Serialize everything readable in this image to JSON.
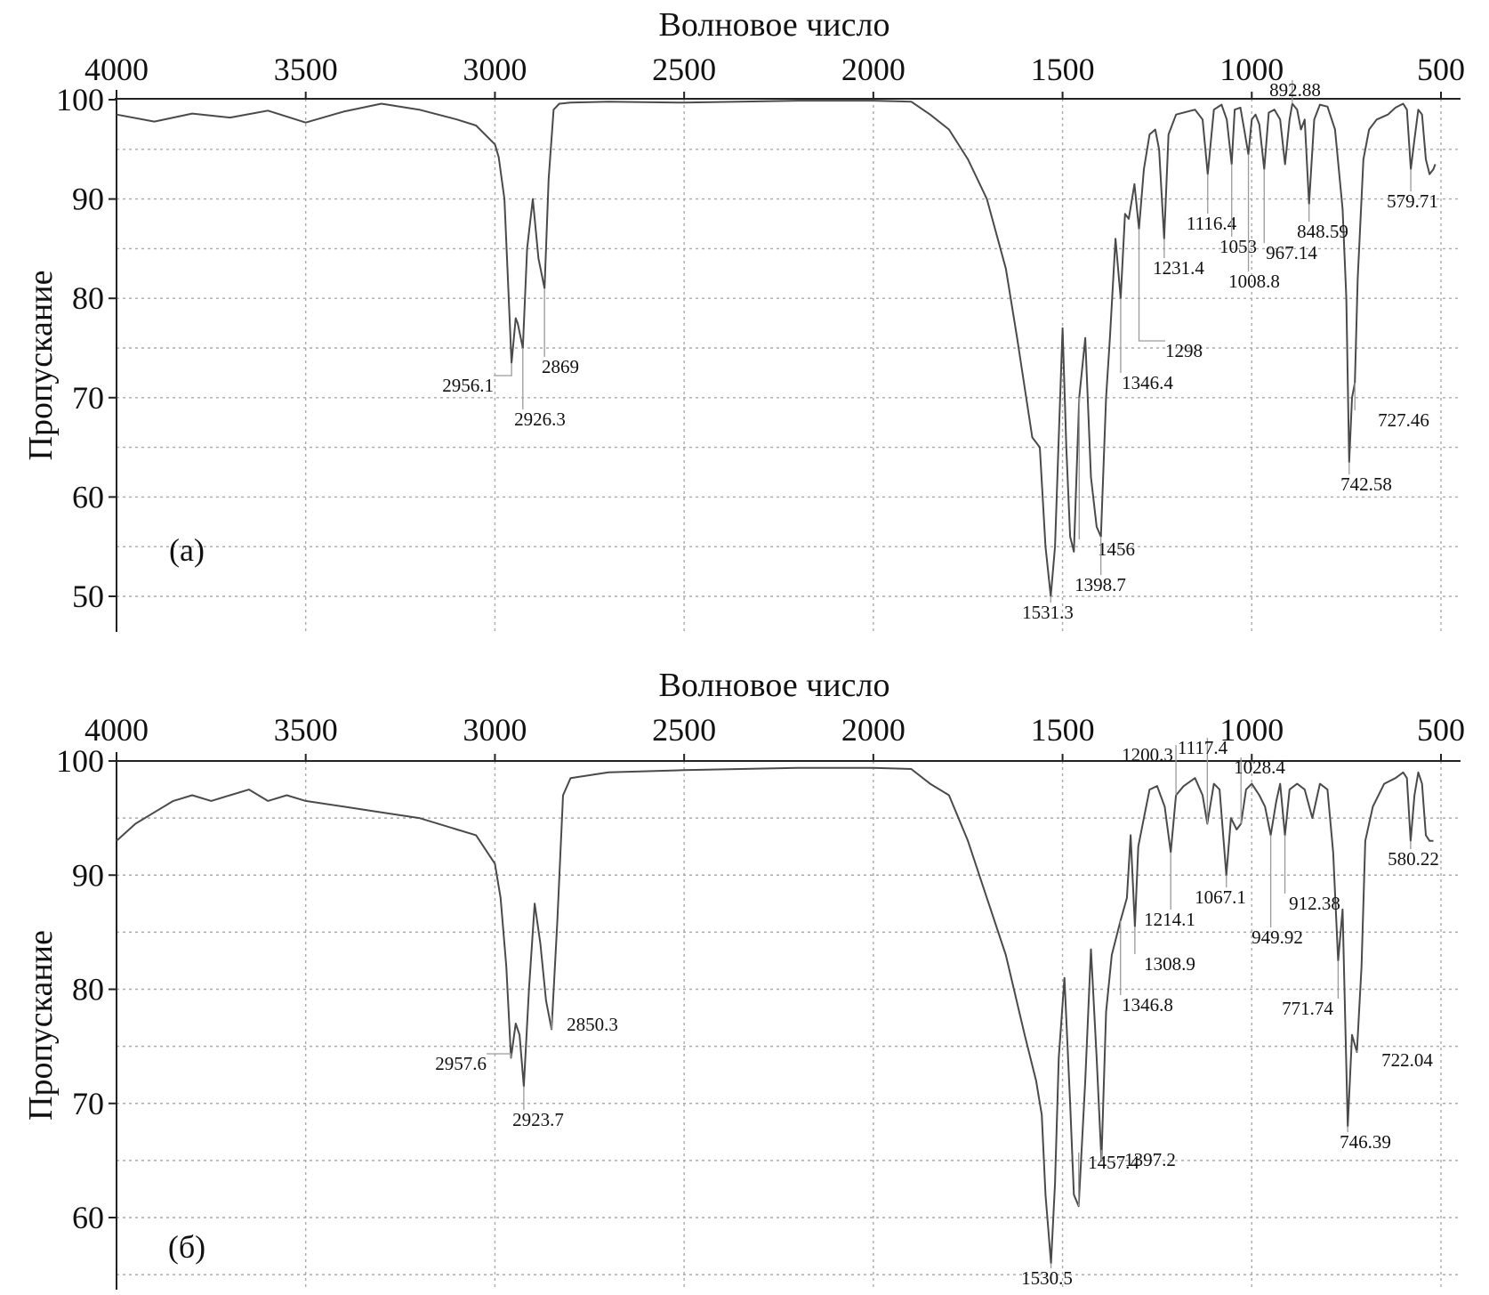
{
  "chart_data": [
    {
      "type": "line",
      "panel": "(a)",
      "xlabel": "Волновое число",
      "ylabel": "Пропускание",
      "xlim": [
        4000,
        500
      ],
      "ylim": [
        47,
        100
      ],
      "x_reversed": true,
      "xticks": [
        4000,
        3500,
        3000,
        2500,
        2000,
        1500,
        1000,
        500
      ],
      "yticks": [
        100,
        90,
        80,
        70,
        60,
        50
      ],
      "grid": true,
      "series": [
        {
          "x": [
            4000,
            3900,
            3800,
            3700,
            3600,
            3500,
            3400,
            3300,
            3200,
            3100,
            3050,
            3000,
            2990,
            2975,
            2956.1,
            2945,
            2940,
            2926.3,
            2915,
            2900,
            2885,
            2869,
            2858,
            2845,
            2830,
            2800,
            2700,
            2500,
            2200,
            2000,
            1900,
            1850,
            1800,
            1750,
            1700,
            1650,
            1620,
            1600,
            1580,
            1560,
            1545,
            1531.3,
            1520,
            1510,
            1500,
            1490,
            1480,
            1470,
            1456,
            1440,
            1425,
            1410,
            1398.7,
            1385,
            1375,
            1360,
            1346.4,
            1335,
            1325,
            1310,
            1298,
            1285,
            1270,
            1255,
            1245,
            1231.4,
            1220,
            1200,
            1150,
            1130,
            1116.4,
            1100,
            1080,
            1066,
            1053,
            1045,
            1030,
            1020,
            1008.8,
            1000,
            990,
            980,
            967.14,
            955,
            940,
            925,
            912,
            900,
            892.88,
            880,
            870,
            860,
            848.59,
            835,
            820,
            800,
            780,
            760,
            750,
            742.58,
            735,
            727.46,
            720,
            705,
            690,
            670,
            640,
            620,
            600,
            590,
            579.71,
            570,
            560,
            550,
            540,
            530,
            520,
            515
          ],
          "y": [
            98.5,
            97.8,
            98.6,
            98.2,
            98.9,
            97.7,
            98.8,
            99.6,
            99.0,
            98.0,
            97.4,
            95.5,
            94.2,
            90.0,
            73.5,
            78.0,
            77.5,
            75.0,
            85.0,
            90.0,
            84.0,
            81.0,
            92.0,
            99.0,
            99.6,
            99.7,
            99.8,
            99.7,
            99.9,
            99.9,
            99.8,
            98.5,
            97.0,
            94.0,
            90.0,
            83.0,
            76.0,
            71.0,
            66.0,
            65.0,
            55.0,
            50.0,
            55.0,
            66.0,
            77.0,
            65.0,
            56.0,
            54.5,
            70.0,
            76.0,
            62.0,
            57.0,
            56.0,
            70.0,
            76.0,
            86.0,
            80.0,
            88.5,
            88.0,
            91.5,
            87.0,
            93.0,
            96.5,
            97.0,
            95.0,
            86.0,
            96.5,
            98.5,
            99.0,
            98.0,
            92.5,
            99.0,
            99.5,
            98.0,
            93.5,
            99.0,
            99.2,
            97.0,
            94.5,
            98.0,
            98.5,
            97.5,
            93.0,
            98.7,
            99.0,
            98.0,
            93.5,
            98.0,
            99.6,
            99.0,
            97.0,
            98.0,
            89.5,
            98.0,
            99.5,
            99.3,
            97.0,
            89.0,
            80.0,
            63.5,
            70.0,
            71.5,
            82.0,
            94.0,
            97.0,
            98.0,
            98.5,
            99.2,
            99.6,
            99.0,
            93.0,
            96.0,
            99.0,
            98.5,
            94.0,
            92.5,
            93.0,
            93.5
          ]
        }
      ],
      "annotations": [
        {
          "x": 2956.1,
          "label": "2956.1"
        },
        {
          "x": 2926.3,
          "label": "2926.3"
        },
        {
          "x": 2869,
          "label": "2869"
        },
        {
          "x": 1531.3,
          "label": "1531.3"
        },
        {
          "x": 1456,
          "label": "1456"
        },
        {
          "x": 1398.7,
          "label": "1398.7"
        },
        {
          "x": 1346.4,
          "label": "1346.4"
        },
        {
          "x": 1298,
          "label": "1298"
        },
        {
          "x": 1231.4,
          "label": "1231.4"
        },
        {
          "x": 1116.4,
          "label": "1116.4"
        },
        {
          "x": 1053,
          "label": "1053"
        },
        {
          "x": 1008.8,
          "label": "1008.8"
        },
        {
          "x": 967.14,
          "label": "967.14"
        },
        {
          "x": 892.88,
          "label": "892.88"
        },
        {
          "x": 848.59,
          "label": "848.59"
        },
        {
          "x": 742.58,
          "label": "742.58"
        },
        {
          "x": 727.46,
          "label": "727.46"
        },
        {
          "x": 579.71,
          "label": "579.71"
        }
      ]
    },
    {
      "type": "line",
      "panel": "(б)",
      "xlabel": "Волновое число",
      "ylabel": "Пропускание",
      "xlim": [
        4000,
        500
      ],
      "ylim": [
        55,
        100
      ],
      "x_reversed": true,
      "xticks": [
        4000,
        3500,
        3000,
        2500,
        2000,
        1500,
        1000,
        500
      ],
      "yticks": [
        100,
        90,
        80,
        70,
        60
      ],
      "grid": true,
      "series": [
        {
          "x": [
            4000,
            3950,
            3900,
            3850,
            3800,
            3750,
            3700,
            3650,
            3600,
            3550,
            3500,
            3400,
            3300,
            3200,
            3100,
            3050,
            3000,
            2985,
            2970,
            2957.6,
            2945,
            2935,
            2923.7,
            2910,
            2895,
            2880,
            2865,
            2850.3,
            2835,
            2820,
            2800,
            2700,
            2500,
            2200,
            2000,
            1900,
            1850,
            1800,
            1750,
            1700,
            1650,
            1600,
            1570,
            1555,
            1545,
            1530.5,
            1520,
            1510,
            1495,
            1480,
            1470,
            1457.4,
            1440,
            1425,
            1410,
            1397.2,
            1385,
            1370,
            1346.8,
            1330,
            1320,
            1308.9,
            1300,
            1285,
            1270,
            1250,
            1230,
            1214.1,
            1200.3,
            1180,
            1150,
            1130,
            1117.4,
            1100,
            1085,
            1067.1,
            1055,
            1040,
            1028.4,
            1015,
            1000,
            980,
            965,
            949.92,
            935,
            925,
            912.38,
            900,
            880,
            860,
            840,
            820,
            800,
            785,
            771.74,
            760,
            746.39,
            735,
            722.04,
            710,
            700,
            680,
            650,
            620,
            600,
            590,
            580.22,
            570,
            560,
            550,
            540,
            530,
            520
          ],
          "y": [
            93.0,
            94.5,
            95.5,
            96.5,
            97.0,
            96.5,
            97.0,
            97.5,
            96.5,
            97.0,
            96.5,
            96.0,
            95.5,
            95.0,
            94.0,
            93.5,
            91.0,
            88.0,
            82.0,
            74.0,
            77.0,
            76.0,
            71.5,
            80.0,
            87.5,
            84.0,
            79.0,
            76.5,
            86.0,
            97.0,
            98.5,
            99.0,
            99.2,
            99.4,
            99.4,
            99.3,
            98.0,
            97.0,
            93.0,
            88.0,
            83.0,
            76.0,
            72.0,
            69.0,
            62.0,
            56.0,
            63.0,
            74.0,
            81.0,
            70.0,
            62.0,
            61.0,
            72.0,
            83.5,
            74.0,
            65.0,
            78.0,
            83.0,
            86.0,
            88.0,
            93.5,
            85.5,
            92.5,
            95.0,
            97.5,
            97.8,
            96.0,
            92.0,
            97.0,
            97.8,
            98.5,
            97.0,
            94.5,
            98.0,
            97.5,
            90.0,
            95.0,
            94.0,
            94.5,
            97.5,
            98.0,
            97.0,
            96.0,
            93.5,
            96.5,
            98.0,
            93.5,
            97.5,
            98.0,
            97.5,
            95.0,
            98.0,
            97.5,
            92.0,
            82.5,
            87.0,
            68.0,
            76.0,
            74.5,
            82.0,
            93.0,
            96.0,
            98.0,
            98.5,
            99.0,
            98.5,
            93.0,
            97.0,
            99.0,
            98.0,
            93.5,
            93.0,
            93.0
          ]
        }
      ],
      "annotations": [
        {
          "x": 2957.6,
          "label": "2957.6"
        },
        {
          "x": 2923.7,
          "label": "2923.7"
        },
        {
          "x": 2850.3,
          "label": "2850.3"
        },
        {
          "x": 1530.5,
          "label": "1530.5"
        },
        {
          "x": 1457.4,
          "label": "1457.4"
        },
        {
          "x": 1397.2,
          "label": "1397.2"
        },
        {
          "x": 1346.8,
          "label": "1346.8"
        },
        {
          "x": 1308.9,
          "label": "1308.9"
        },
        {
          "x": 1214.1,
          "label": "1214.1"
        },
        {
          "x": 1200.3,
          "label": "1200.3"
        },
        {
          "x": 1117.4,
          "label": "1117.4"
        },
        {
          "x": 1067.1,
          "label": "1067.1"
        },
        {
          "x": 1028.4,
          "label": "1028.4"
        },
        {
          "x": 949.92,
          "label": "949.92"
        },
        {
          "x": 912.38,
          "label": "912.38"
        },
        {
          "x": 771.74,
          "label": "771.74"
        },
        {
          "x": 746.39,
          "label": "746.39"
        },
        {
          "x": 722.04,
          "label": "722.04"
        },
        {
          "x": 580.22,
          "label": "580.22"
        }
      ]
    }
  ]
}
